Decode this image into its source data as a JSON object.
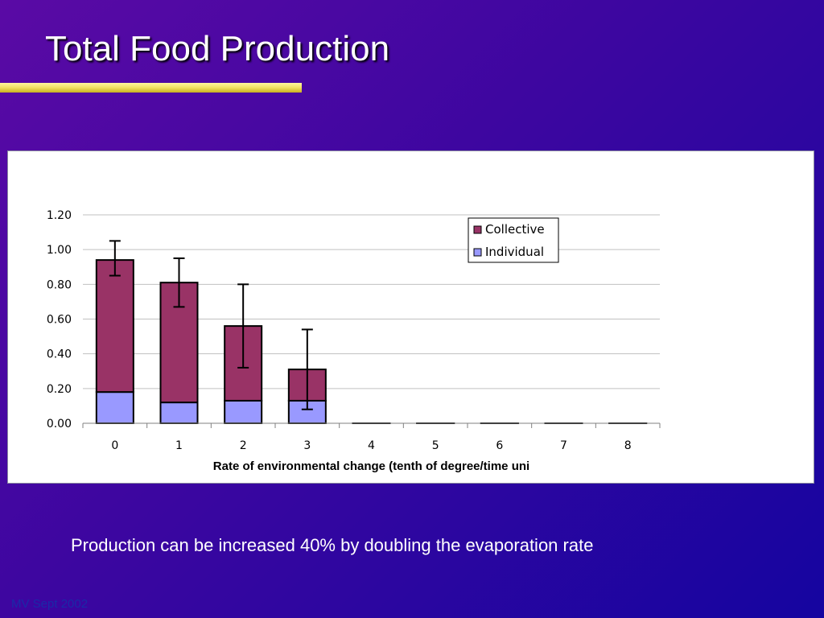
{
  "slide": {
    "title": "Total Food Production",
    "caption": "Production can be increased 40% by doubling the evaporation rate",
    "footer": "MV Sept 2002"
  },
  "colors": {
    "background": "#3c06a0",
    "title_underline": "#f0e060",
    "collective": "#993366",
    "individual": "#9999ff"
  },
  "chart_data": {
    "type": "bar",
    "stacked": true,
    "title": "",
    "xlabel": "Rate of environmental change (tenth of degree/time uni",
    "ylabel": "",
    "categories": [
      "0",
      "1",
      "2",
      "3",
      "4",
      "5",
      "6",
      "7",
      "8"
    ],
    "ylim": [
      0,
      1.2
    ],
    "yticks": [
      "0.00",
      "0.20",
      "0.40",
      "0.60",
      "0.80",
      "1.00",
      "1.20"
    ],
    "grid": true,
    "legend_position": "top-right",
    "series": [
      {
        "name": "Individual",
        "color": "#9999ff",
        "values": [
          0.18,
          0.12,
          0.13,
          0.13,
          0,
          0,
          0,
          0,
          0
        ]
      },
      {
        "name": "Collective",
        "color": "#993366",
        "values": [
          0.76,
          0.69,
          0.43,
          0.18,
          0,
          0,
          0,
          0,
          0
        ]
      }
    ],
    "error_bars": {
      "low": [
        0.85,
        0.67,
        0.32,
        0.08,
        null,
        null,
        null,
        null,
        null
      ],
      "high": [
        1.05,
        0.95,
        0.8,
        0.54,
        null,
        null,
        null,
        null,
        null
      ]
    }
  }
}
